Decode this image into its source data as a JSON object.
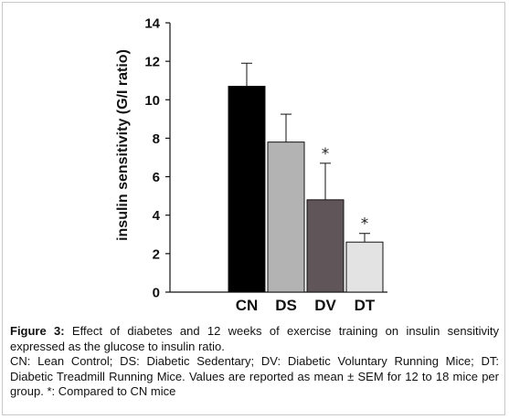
{
  "chart_data": {
    "type": "bar",
    "categories": [
      "CN",
      "DS",
      "DV",
      "DT"
    ],
    "values": [
      10.7,
      7.8,
      4.8,
      2.6
    ],
    "errors": [
      1.2,
      1.45,
      1.9,
      0.45
    ],
    "colors": [
      "#000000",
      "#b3b3b3",
      "#605558",
      "#e3e3e3"
    ],
    "annotations": [
      "",
      "",
      "*",
      "*"
    ],
    "ylabel": "insulin sensitivity (G/I ratio)",
    "xlabel": "",
    "ylim": [
      0,
      14
    ],
    "yticks": [
      0,
      2,
      4,
      6,
      8,
      10,
      12,
      14
    ],
    "grid": false
  },
  "caption": {
    "label": "Figure 3:",
    "text": " Effect of diabetes and 12 weeks of exercise training on insulin sensitivity expressed as the glucose to insulin ratio.",
    "legend": "CN: Lean Control; DS: Diabetic Sedentary; DV: Diabetic Voluntary Running Mice; DT: Diabetic Treadmill Running Mice. Values are reported as mean ± SEM for 12 to 18 mice per group. *: Compared to CN mice"
  }
}
